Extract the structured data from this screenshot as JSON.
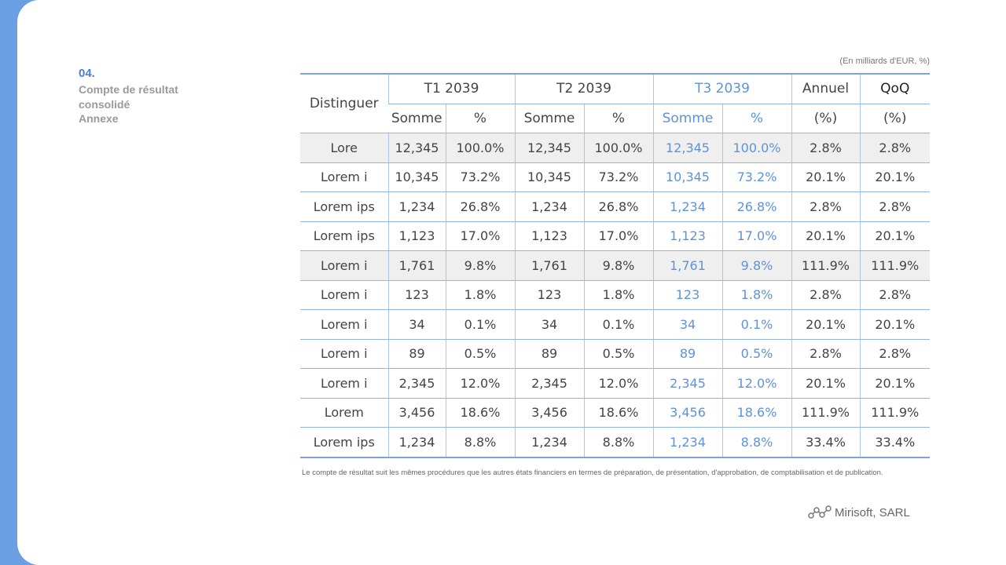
{
  "header": {
    "number": "04.",
    "title": "Compte de résultat consolidé",
    "subtitle": "Annexe"
  },
  "unit_note": "(En milliards d'EUR, %)",
  "table": {
    "header_row_1": [
      "Distinguer",
      "T1 2039",
      "T2 2039",
      "T3 2039",
      "Annuel",
      "QoQ"
    ],
    "header_row_2": [
      "Somme",
      "%",
      "Somme",
      "%",
      "Somme",
      "%",
      "(%)",
      "(%)"
    ],
    "rows": [
      [
        "Lore",
        "12,345",
        "100.0%",
        "12,345",
        "100.0%",
        "12,345",
        "100.0%",
        "2.8%",
        "2.8%"
      ],
      [
        "Lorem i",
        "10,345",
        "73.2%",
        "10,345",
        "73.2%",
        "10,345",
        "73.2%",
        "20.1%",
        "20.1%"
      ],
      [
        "Lorem ips",
        "1,234",
        "26.8%",
        "1,234",
        "26.8%",
        "1,234",
        "26.8%",
        "2.8%",
        "2.8%"
      ],
      [
        "Lorem ips",
        "1,123",
        "17.0%",
        "1,123",
        "17.0%",
        "1,123",
        "17.0%",
        "20.1%",
        "20.1%"
      ],
      [
        "Lorem i",
        "1,761",
        "9.8%",
        "1,761",
        "9.8%",
        "1,761",
        "9.8%",
        "111.9%",
        "111.9%"
      ],
      [
        "Lorem i",
        "123",
        "1.8%",
        "123",
        "1.8%",
        "123",
        "1.8%",
        "2.8%",
        "2.8%"
      ],
      [
        "Lorem i",
        "34",
        "0.1%",
        "34",
        "0.1%",
        "34",
        "0.1%",
        "20.1%",
        "20.1%"
      ],
      [
        "Lorem i",
        "89",
        "0.5%",
        "89",
        "0.5%",
        "89",
        "0.5%",
        "2.8%",
        "2.8%"
      ],
      [
        "Lorem i",
        "2,345",
        "12.0%",
        "2,345",
        "12.0%",
        "2,345",
        "12.0%",
        "20.1%",
        "20.1%"
      ],
      [
        "Lorem",
        "3,456",
        "18.6%",
        "3,456",
        "18.6%",
        "3,456",
        "18.6%",
        "111.9%",
        "111.9%"
      ],
      [
        "Lorem ips",
        "1,234",
        "8.8%",
        "1,234",
        "8.8%",
        "1,234",
        "8.8%",
        "33.4%",
        "33.4%"
      ]
    ]
  },
  "footnote": "Le compte de résultat suit les mêmes procédures que les autres états financiers en termes de préparation, de présentation, d'approbation, de comptabilisation et de publication.",
  "footer": {
    "brand": "Mirisoft, SARL"
  }
}
